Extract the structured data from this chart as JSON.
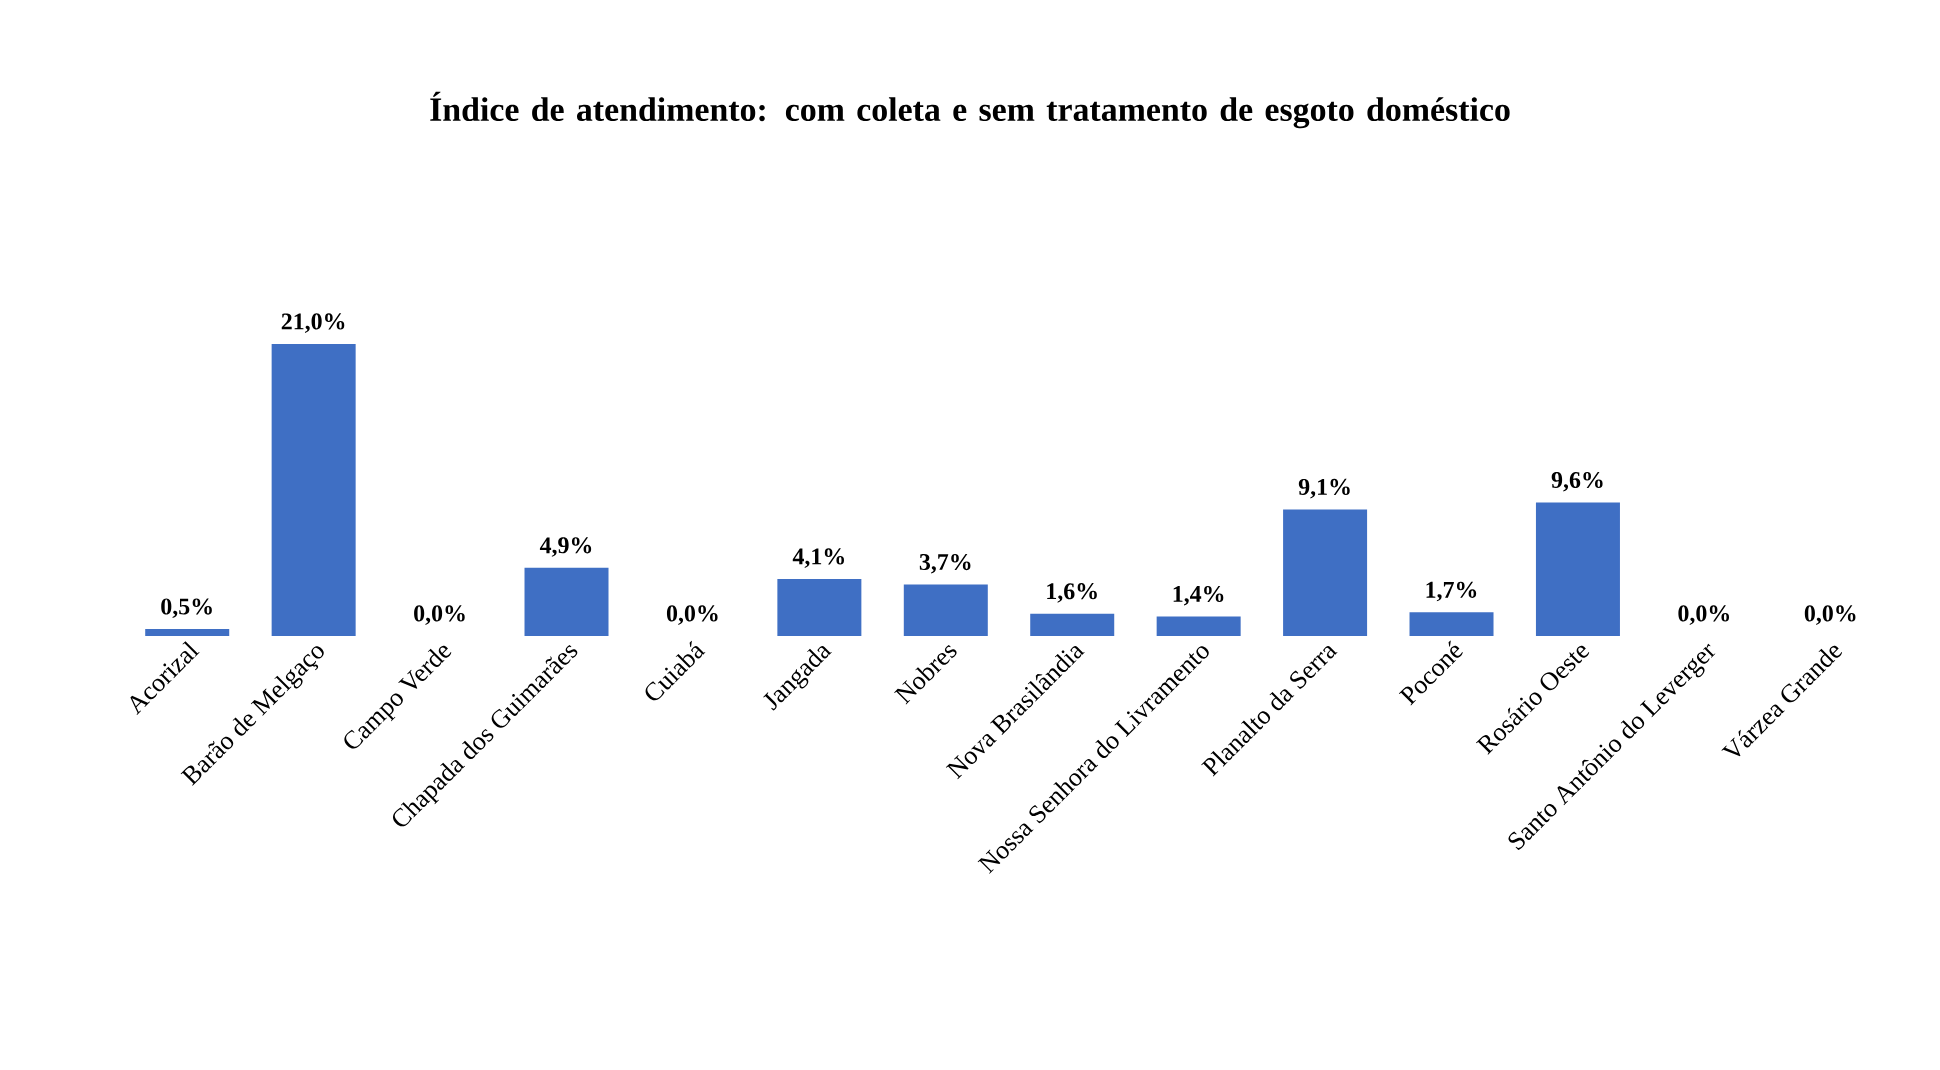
{
  "chart_data": {
    "type": "bar",
    "title": "Índice de atendimento: com coleta e sem tratamento de esgoto doméstico",
    "categories": [
      "Acorizal",
      "Barão de Melgaço",
      "Campo Verde",
      "Chapada dos Guimarães",
      "Cuiabá",
      "Jangada",
      "Nobres",
      "Nova Brasilândia",
      "Nossa Senhora do Livramento",
      "Planalto da Serra",
      "Poconé",
      "Rosário Oeste",
      "Santo Antônio do Leverger",
      "Várzea Grande"
    ],
    "values": [
      0.5,
      21.0,
      0.0,
      4.9,
      0.0,
      4.1,
      3.7,
      1.6,
      1.4,
      9.1,
      1.7,
      9.6,
      0.0,
      0.0
    ],
    "value_labels": [
      "0,5%",
      "21,0%",
      "0,0%",
      "4,9%",
      "0,0%",
      "4,1%",
      "3,7%",
      "1,6%",
      "1,4%",
      "9,1%",
      "1,7%",
      "9,6%",
      "0,0%",
      "0,0%"
    ],
    "color": "#3f6fc4"
  }
}
